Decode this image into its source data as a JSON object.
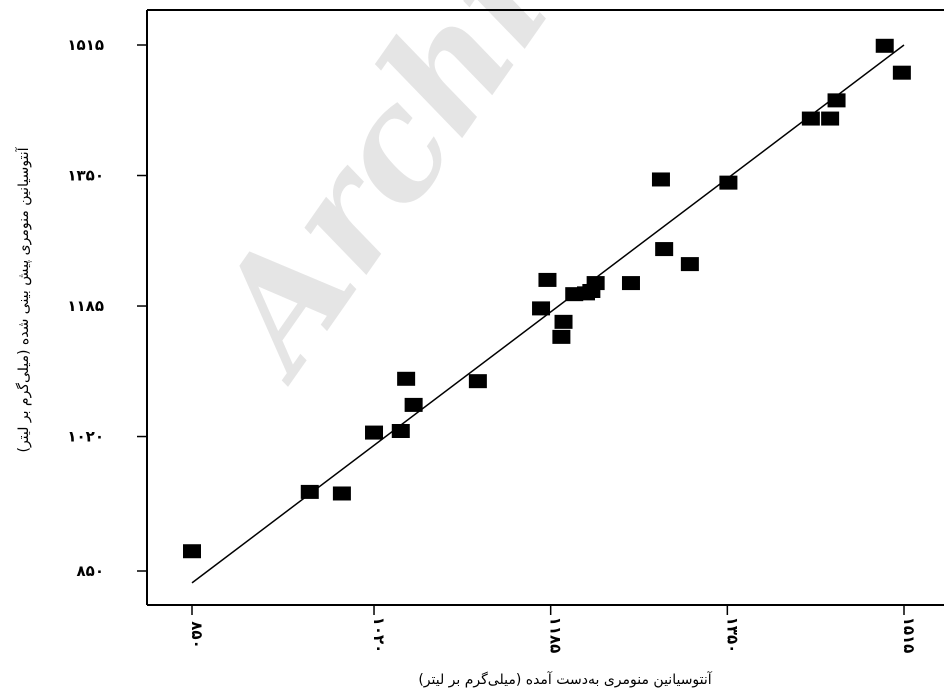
{
  "watermark": "Archi",
  "chart_data": {
    "type": "scatter",
    "xlabel": "آنتوسیانین منومری به‌دست آمده (میلی‌گرم بر لیتر)",
    "ylabel": "آنتوسیانین منومری پیش بینی شده (میلی‌گرم بر لیتر)",
    "x_ticks": [
      850,
      1020,
      1185,
      1350,
      1515
    ],
    "y_ticks": [
      850,
      1020,
      1185,
      1350,
      1515
    ],
    "x_tick_labels": [
      "۸۵۰",
      "۱۰۲۰",
      "۱۱۸۵",
      "۱۳۵۰",
      "۱۵۱۵"
    ],
    "y_tick_labels": [
      "۸۵۰",
      "۱۰۲۰",
      "۱۱۸۵",
      "۱۳۵۰",
      "۱۵۱۵"
    ],
    "xlim": [
      810,
      1530
    ],
    "ylim": [
      810,
      1560
    ],
    "grid": false,
    "series": [
      {
        "points": [
          [
            850,
            875
          ],
          [
            960,
            950
          ],
          [
            990,
            948
          ],
          [
            1020,
            1025
          ],
          [
            1045,
            1027
          ],
          [
            1050,
            1093
          ],
          [
            1057,
            1060
          ],
          [
            1117,
            1090
          ],
          [
            1176,
            1182
          ],
          [
            1182,
            1218
          ],
          [
            1195,
            1146
          ],
          [
            1197,
            1165
          ],
          [
            1207,
            1200
          ],
          [
            1218,
            1201
          ],
          [
            1223,
            1204
          ],
          [
            1227,
            1214
          ],
          [
            1260,
            1214
          ],
          [
            1288,
            1345
          ],
          [
            1291,
            1257
          ],
          [
            1315,
            1238
          ],
          [
            1351,
            1341
          ],
          [
            1428,
            1422
          ],
          [
            1446,
            1422
          ],
          [
            1452,
            1445
          ],
          [
            1497,
            1514
          ],
          [
            1513,
            1480
          ]
        ]
      }
    ],
    "fit_line": {
      "x": [
        850,
        1515
      ],
      "y": [
        835,
        1515
      ]
    }
  }
}
